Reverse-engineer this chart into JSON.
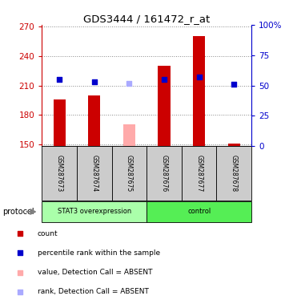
{
  "title": "GDS3444 / 161472_r_at",
  "samples": [
    "GSM287673",
    "GSM287674",
    "GSM287675",
    "GSM287676",
    "GSM287677",
    "GSM287678"
  ],
  "count_values": [
    196,
    200,
    null,
    230,
    260,
    151
  ],
  "absent_count_values": [
    null,
    null,
    170,
    null,
    null,
    null
  ],
  "percentile_values": [
    55,
    53,
    null,
    55,
    57,
    51
  ],
  "absent_percentile_values": [
    null,
    null,
    52,
    null,
    null,
    null
  ],
  "ylim_left": [
    148,
    272
  ],
  "ylim_right": [
    0,
    100
  ],
  "yticks_left": [
    150,
    180,
    210,
    240,
    270
  ],
  "yticks_right": [
    0,
    25,
    50,
    75,
    100
  ],
  "left_axis_color": "#cc0000",
  "right_axis_color": "#0000cc",
  "bar_color": "#cc0000",
  "bar_color_absent": "#ffaaaa",
  "square_color": "#0000cc",
  "square_color_absent": "#aaaaff",
  "stat3_color": "#aaffaa",
  "control_color": "#55ee55",
  "protocol_label": "protocol",
  "legend_items": [
    {
      "label": "count",
      "color": "#cc0000"
    },
    {
      "label": "percentile rank within the sample",
      "color": "#0000cc"
    },
    {
      "label": "value, Detection Call = ABSENT",
      "color": "#ffaaaa"
    },
    {
      "label": "rank, Detection Call = ABSENT",
      "color": "#aaaaff"
    }
  ],
  "bar_width": 0.35,
  "square_size": 25,
  "background_color": "#ffffff"
}
